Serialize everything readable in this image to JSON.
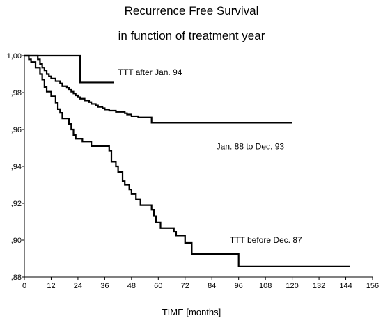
{
  "chart_data": {
    "type": "line",
    "title": "Recurrence Free Survival",
    "subtitle": "in function of treatment year",
    "xlabel": "TIME [months]",
    "ylabel": "",
    "xlim": [
      0,
      156
    ],
    "ylim": [
      0.88,
      1.0
    ],
    "x_ticks": [
      0,
      12,
      24,
      36,
      48,
      60,
      72,
      84,
      96,
      108,
      120,
      132,
      144,
      156
    ],
    "x_tick_labels": [
      "0",
      "12",
      "24",
      "36",
      "48",
      "60",
      "72",
      "84",
      "96",
      "108",
      "120",
      "132",
      "144",
      "156"
    ],
    "y_ticks": [
      0.88,
      0.9,
      0.92,
      0.94,
      0.96,
      0.98,
      1.0
    ],
    "y_tick_labels": [
      ",88",
      ",90",
      ",92",
      ",94",
      ",96",
      ",98",
      "1,00"
    ],
    "grid": false,
    "step": true,
    "series": [
      {
        "name": "TTT after Jan. 94",
        "points": [
          [
            0,
            1.0
          ],
          [
            25,
            1.0
          ],
          [
            25,
            0.9855
          ],
          [
            40,
            0.9855
          ]
        ]
      },
      {
        "name": "Jan. 88 to Dec. 93",
        "points": [
          [
            0,
            1.0
          ],
          [
            6,
            0.998
          ],
          [
            7,
            0.9955
          ],
          [
            8,
            0.9935
          ],
          [
            9,
            0.992
          ],
          [
            10,
            0.99
          ],
          [
            11,
            0.9888
          ],
          [
            12,
            0.9876
          ],
          [
            14,
            0.9862
          ],
          [
            16,
            0.985
          ],
          [
            17,
            0.9835
          ],
          [
            19,
            0.9826
          ],
          [
            20,
            0.9815
          ],
          [
            21,
            0.9805
          ],
          [
            22,
            0.9795
          ],
          [
            23,
            0.9785
          ],
          [
            24,
            0.9775
          ],
          [
            25,
            0.9767
          ],
          [
            27,
            0.9757
          ],
          [
            29,
            0.9748
          ],
          [
            30,
            0.9738
          ],
          [
            32,
            0.973
          ],
          [
            33,
            0.9722
          ],
          [
            35,
            0.9715
          ],
          [
            36,
            0.9708
          ],
          [
            38,
            0.9702
          ],
          [
            41,
            0.9695
          ],
          [
            45,
            0.9688
          ],
          [
            46,
            0.9681
          ],
          [
            48,
            0.9672
          ],
          [
            51,
            0.9665
          ],
          [
            57,
            0.9636
          ],
          [
            120,
            0.9636
          ]
        ]
      },
      {
        "name": "TTT before Dec. 87",
        "points": [
          [
            0,
            1.0
          ],
          [
            2,
            0.998
          ],
          [
            3,
            0.9965
          ],
          [
            5,
            0.9935
          ],
          [
            7,
            0.99
          ],
          [
            8,
            0.987
          ],
          [
            9,
            0.983
          ],
          [
            10,
            0.9805
          ],
          [
            12,
            0.978
          ],
          [
            14,
            0.9745
          ],
          [
            15,
            0.971
          ],
          [
            16,
            0.969
          ],
          [
            17,
            0.966
          ],
          [
            20,
            0.963
          ],
          [
            21,
            0.96
          ],
          [
            22,
            0.957
          ],
          [
            23,
            0.955
          ],
          [
            26,
            0.9535
          ],
          [
            30,
            0.951
          ],
          [
            38,
            0.9485
          ],
          [
            39,
            0.9425
          ],
          [
            41,
            0.94
          ],
          [
            42,
            0.937
          ],
          [
            44,
            0.932
          ],
          [
            45,
            0.93
          ],
          [
            47,
            0.9275
          ],
          [
            48,
            0.925
          ],
          [
            50,
            0.922
          ],
          [
            52,
            0.919
          ],
          [
            57,
            0.9165
          ],
          [
            58,
            0.913
          ],
          [
            59,
            0.9095
          ],
          [
            61,
            0.9065
          ],
          [
            67,
            0.9045
          ],
          [
            68,
            0.9025
          ],
          [
            72,
            0.8985
          ],
          [
            75,
            0.8924
          ],
          [
            96,
            0.8857
          ],
          [
            146,
            0.8857
          ]
        ]
      }
    ],
    "annotations": [
      {
        "text": "TTT after Jan. 94",
        "x": 42,
        "y": 0.9895
      },
      {
        "text": "Jan. 88 to Dec. 93",
        "x": 86,
        "y": 0.9492
      },
      {
        "text": "TTT before Dec. 87",
        "x": 92,
        "y": 0.8985
      }
    ]
  }
}
